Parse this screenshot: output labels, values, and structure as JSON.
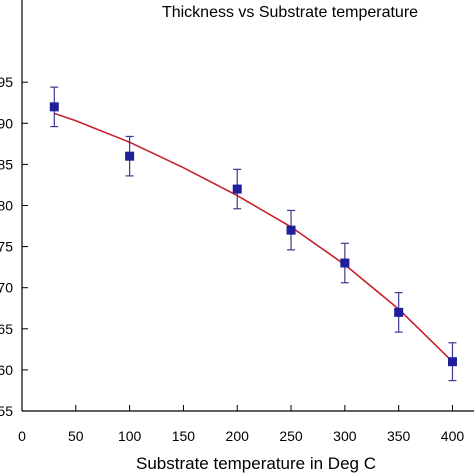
{
  "chart_data": {
    "type": "scatter",
    "title": "Thickness vs Substrate temperature",
    "xlabel": "Substrate temperature in Deg C",
    "ylabel": "",
    "xlim": [
      0,
      420
    ],
    "ylim": [
      55,
      105
    ],
    "x_ticks": [
      0,
      50,
      100,
      150,
      200,
      250,
      300,
      350,
      400
    ],
    "x_tick_labels": [
      "0",
      "50",
      "100",
      "150",
      "200",
      "250",
      "300",
      "350",
      "400"
    ],
    "y_ticks": [
      55,
      60,
      65,
      70,
      75,
      80,
      85,
      90,
      95
    ],
    "y_tick_labels": [
      "55",
      "60",
      "65",
      "70",
      "75",
      "80",
      "85",
      "90",
      "95"
    ],
    "grid": false,
    "series": [
      {
        "x": [
          30,
          100,
          200,
          250,
          300,
          350,
          400
        ],
        "y": [
          92,
          86,
          82,
          77,
          73,
          67,
          61
        ],
        "error": [
          2.4,
          2.4,
          2.4,
          2.4,
          2.4,
          2.4,
          2.3
        ],
        "color": "#1f1f9a",
        "marker": "square"
      },
      {
        "type": "line",
        "x": [
          30,
          50,
          100,
          150,
          200,
          250,
          300,
          350,
          400
        ],
        "y": [
          91.2,
          90.3,
          87.7,
          84.6,
          81.2,
          77.4,
          72.8,
          67.4,
          61.0
        ],
        "color": "#c8202a"
      }
    ]
  }
}
